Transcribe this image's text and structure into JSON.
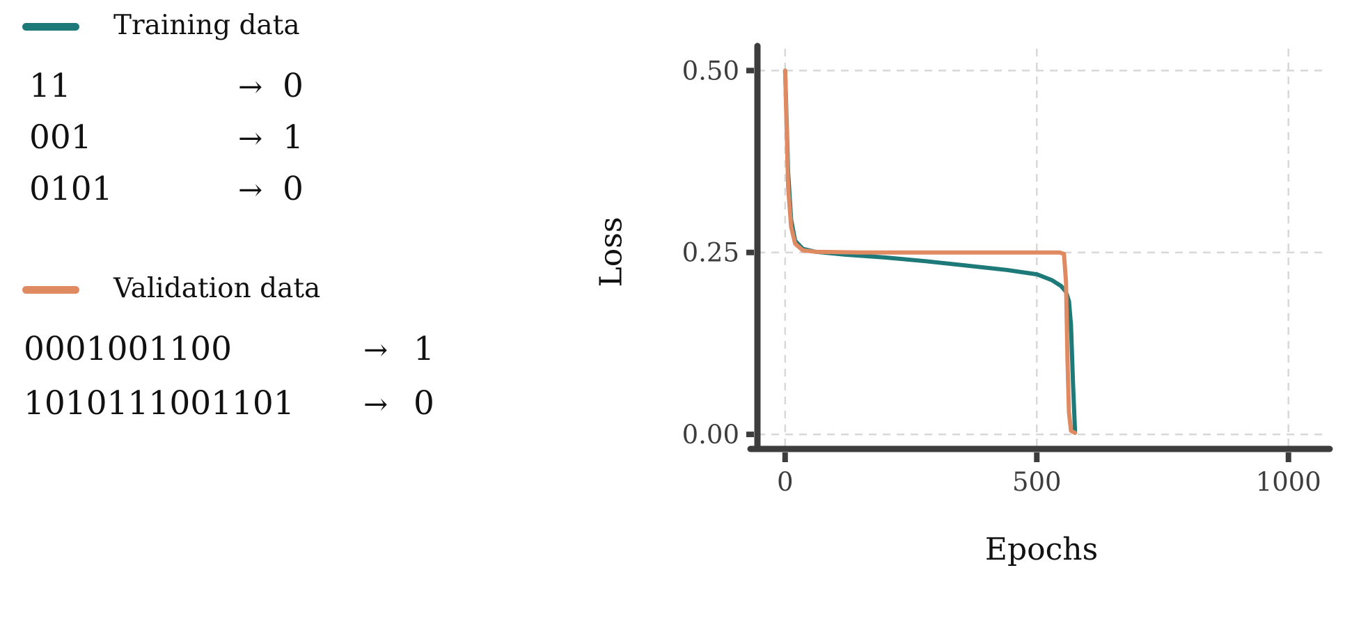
{
  "colors": {
    "training": "#1d7a79",
    "validation": "#e08a62",
    "axis": "#3d3d3d",
    "grid": "#d8d8d8",
    "tick_text": "#3d3d3d",
    "text": "#111111"
  },
  "legend": {
    "training": {
      "label": "Training data",
      "examples": [
        {
          "input": "11",
          "arrow": "→",
          "output": "0"
        },
        {
          "input": "001",
          "arrow": "→",
          "output": "1"
        },
        {
          "input": "0101",
          "arrow": "→",
          "output": "0"
        }
      ]
    },
    "validation": {
      "label": "Validation data",
      "examples": [
        {
          "input": "0001001100",
          "arrow": "→",
          "output": "1"
        },
        {
          "input": "1010111001101",
          "arrow": "→",
          "output": "0"
        }
      ]
    }
  },
  "chart_data": {
    "type": "line",
    "title": "",
    "xlabel": "Epochs",
    "ylabel": "Loss",
    "xlim": [
      -55,
      1075
    ],
    "ylim": [
      -0.02,
      0.53
    ],
    "xticks": [
      0,
      500,
      1000
    ],
    "yticks": [
      0,
      0.25,
      0.5
    ],
    "xtick_labels": [
      "0",
      "500",
      "1000"
    ],
    "ytick_labels": [
      "0.00",
      "0.25",
      "0.50"
    ],
    "grid": true,
    "legend_position": "outside-left",
    "series": [
      {
        "name": "Training data",
        "color_key": "training",
        "x": [
          0,
          6,
          12,
          20,
          35,
          60,
          120,
          200,
          280,
          360,
          440,
          500,
          530,
          548,
          558,
          564,
          568,
          572,
          576
        ],
        "y": [
          0.5,
          0.36,
          0.295,
          0.266,
          0.255,
          0.251,
          0.247,
          0.243,
          0.238,
          0.232,
          0.226,
          0.22,
          0.212,
          0.204,
          0.196,
          0.183,
          0.15,
          0.07,
          0.004
        ]
      },
      {
        "name": "Validation data",
        "color_key": "validation",
        "x": [
          0,
          6,
          12,
          20,
          35,
          60,
          150,
          300,
          450,
          545,
          554,
          558,
          561,
          564,
          568,
          576
        ],
        "y": [
          0.5,
          0.34,
          0.285,
          0.262,
          0.253,
          0.251,
          0.25,
          0.25,
          0.25,
          0.25,
          0.248,
          0.21,
          0.1,
          0.03,
          0.005,
          0.002
        ]
      }
    ]
  }
}
